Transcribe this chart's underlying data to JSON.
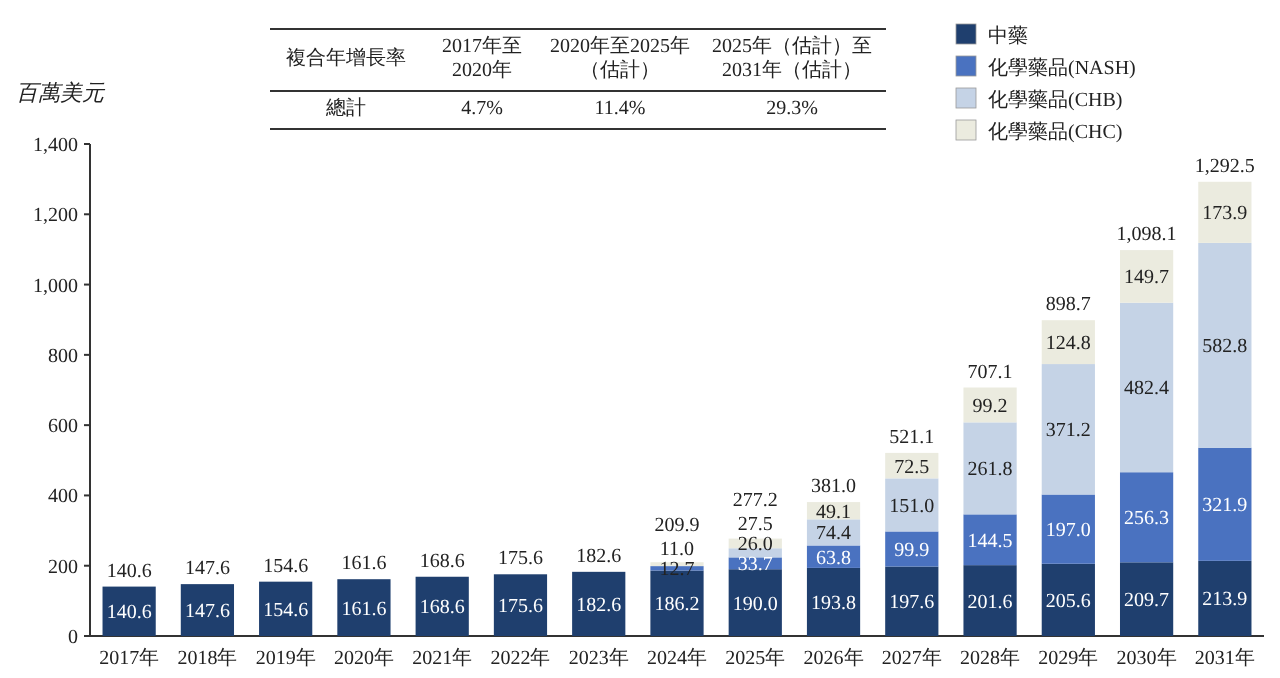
{
  "chart_data": {
    "type": "bar",
    "stacked": true,
    "ylabel": "百萬美元",
    "categories": [
      "2017年",
      "2018年",
      "2019年",
      "2020年",
      "2021年",
      "2022年",
      "2023年",
      "2024年",
      "2025年",
      "2026年",
      "2027年",
      "2028年",
      "2029年",
      "2030年",
      "2031年"
    ],
    "series": [
      {
        "name": "中藥",
        "color": "#1f3f6e",
        "values": [
          140.6,
          147.6,
          154.6,
          161.6,
          168.6,
          175.6,
          182.6,
          186.2,
          190.0,
          193.8,
          197.6,
          201.6,
          205.6,
          209.7,
          213.9
        ],
        "value_labels": [
          "140.6",
          "147.6",
          "154.6",
          "161.6",
          "168.6",
          "175.6",
          "182.6",
          "186.2",
          "190.0",
          "193.8",
          "197.6",
          "201.6",
          "205.6",
          "209.7",
          "213.9"
        ]
      },
      {
        "name": "化學藥品(NASH)",
        "color": "#4a72c0",
        "values": [
          null,
          null,
          null,
          null,
          null,
          null,
          null,
          12.7,
          33.7,
          63.8,
          99.9,
          144.5,
          197.0,
          256.3,
          321.9
        ],
        "value_labels": [
          null,
          null,
          null,
          null,
          null,
          null,
          null,
          "12.7",
          "33.7",
          "63.8",
          "99.9",
          "144.5",
          "197.0",
          "256.3",
          "321.9"
        ]
      },
      {
        "name": "化學藥品(CHB)",
        "color": "#c5d3e6",
        "values": [
          null,
          null,
          null,
          null,
          null,
          null,
          null,
          null,
          26.0,
          74.4,
          151.0,
          261.8,
          371.2,
          482.4,
          582.8
        ],
        "value_labels": [
          null,
          null,
          null,
          null,
          null,
          null,
          null,
          null,
          "26.0",
          "74.4",
          "151.0",
          "261.8",
          "371.2",
          "482.4",
          "582.8"
        ]
      },
      {
        "name": "化學藥品(CHC)",
        "color": "#ebebdf",
        "values": [
          null,
          null,
          null,
          null,
          null,
          null,
          null,
          11.0,
          27.5,
          49.1,
          72.5,
          99.2,
          124.8,
          149.7,
          173.9
        ],
        "value_labels": [
          null,
          null,
          null,
          null,
          null,
          null,
          null,
          "11.0",
          "27.5",
          "49.1",
          "72.5",
          "99.2",
          "124.8",
          "149.7",
          "173.9"
        ]
      }
    ],
    "totals": [
      "140.6",
      "147.6",
      "154.6",
      "161.6",
      "168.6",
      "175.6",
      "182.6",
      "209.9",
      "277.2",
      "381.0",
      "521.1",
      "707.1",
      "898.7",
      "1,098.1",
      "1,292.5"
    ],
    "ylim": [
      0,
      1400
    ],
    "yticks": [
      0,
      200,
      400,
      600,
      800,
      {
        "value": 1000,
        "label": "1,000"
      },
      {
        "value": 1200,
        "label": "1,200"
      },
      {
        "value": 1400,
        "label": "1,400"
      }
    ],
    "legend": "top right",
    "annotations": [
      "複合年增長率",
      "2017年至2020年",
      "2020年至2025年（估計）",
      "2025年（估計）至2031年（估計）",
      "總計",
      "4.7%",
      "11.4%",
      "29.3%"
    ]
  }
}
